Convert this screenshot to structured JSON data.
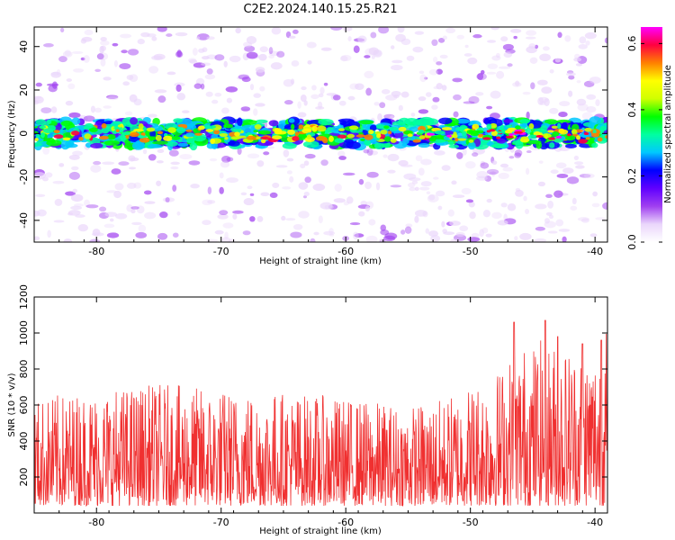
{
  "figure": {
    "title": "C2E2.2024.140.15.25.R21"
  },
  "chart_data": [
    {
      "type": "heatmap",
      "xlabel": "Height of straight line (km)",
      "ylabel": "Frequency (Hz)",
      "xlim": [
        -85,
        -39
      ],
      "ylim": [
        -50,
        49
      ],
      "xticks": [
        -80,
        -70,
        -60,
        -50,
        -40
      ],
      "yticks": [
        -40,
        -20,
        0,
        20,
        40
      ],
      "band": {
        "center_hz": 0,
        "half_width_hz": 6
      },
      "colorbar": {
        "label": "Normalized spectral amplitude",
        "range": [
          0,
          0.65
        ],
        "ticks": [
          "0.0",
          "0.2",
          "0.4",
          "0.6"
        ],
        "tick_values": [
          0,
          0.2,
          0.4,
          0.6
        ],
        "colormap": [
          "#ffffff",
          "#ead6fb",
          "#a040f0",
          "#6000ff",
          "#0000ff",
          "#00c8ff",
          "#00ffa0",
          "#00ff00",
          "#d0ff00",
          "#ffff00",
          "#ff8000",
          "#ff0040",
          "#ff00ff"
        ]
      }
    },
    {
      "type": "line",
      "xlabel": "Height of straight line (km)",
      "ylabel": "SNR (10 * v/v)",
      "xlim": [
        -85,
        -39
      ],
      "ylim": [
        0,
        1200
      ],
      "xticks": [
        -80,
        -70,
        -60,
        -50,
        -40
      ],
      "yticks": [
        200,
        400,
        600,
        800,
        1000,
        1200
      ],
      "series": [
        {
          "color": "#f03030",
          "envelope_x": [
            -85,
            -80,
            -75,
            -70,
            -65,
            -60,
            -55,
            -52,
            -50,
            -48,
            -46,
            -44,
            -42,
            -40,
            -39
          ],
          "envelope_peak": [
            600,
            650,
            680,
            650,
            640,
            600,
            560,
            600,
            690,
            750,
            900,
            930,
            900,
            900,
            1000
          ],
          "notable_peaks": [
            [
              -46.5,
              1200
            ],
            [
              -44,
              1070
            ],
            [
              -43,
              980
            ],
            [
              -46.5,
              1060
            ],
            [
              -39.5,
              960
            ],
            [
              -41,
              940
            ]
          ]
        }
      ]
    }
  ]
}
